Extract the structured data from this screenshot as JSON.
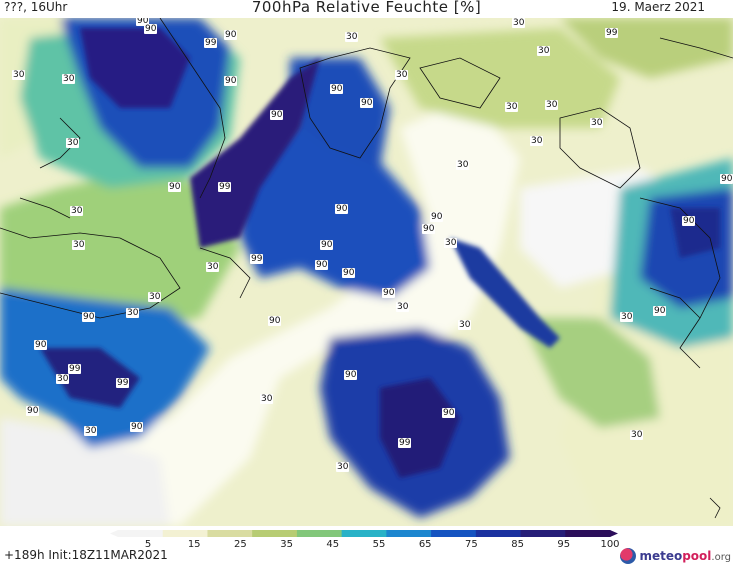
{
  "header": {
    "left": "???, 16Uhr",
    "title": "700hPa Relative Feuchte [%]",
    "right": "19. Maerz 2021"
  },
  "map_labels": {
    "items": [
      "90",
      "90",
      "99",
      "90",
      "30",
      "30",
      "30",
      "30",
      "99",
      "90",
      "30",
      "90",
      "30",
      "30",
      "30",
      "90",
      "90",
      "30",
      "30",
      "30",
      "30",
      "90",
      "30",
      "30",
      "90",
      "90",
      "99",
      "90",
      "30",
      "99",
      "90",
      "90",
      "90",
      "90",
      "30",
      "90",
      "30",
      "30",
      "90",
      "30",
      "90",
      "90",
      "30",
      "90",
      "90",
      "99",
      "99",
      "30",
      "30",
      "90",
      "90",
      "30",
      "90",
      "99",
      "90",
      "30",
      "30",
      "30"
    ]
  },
  "legend": {
    "ticks": [
      "5",
      "15",
      "25",
      "35",
      "45",
      "55",
      "65",
      "75",
      "85",
      "95",
      "100"
    ],
    "colors": [
      "#f4f4f4",
      "#f3f1d3",
      "#d9dca1",
      "#b7cc73",
      "#82c77a",
      "#29b2c7",
      "#1c86cf",
      "#1554c1",
      "#1b32a0",
      "#261e78",
      "#2b0e5a"
    ]
  },
  "footer": {
    "run": "+189h  Init:18Z11MAR2021"
  },
  "brand": {
    "name_a": "meteo",
    "name_b": "pool",
    "name_c": ".org"
  }
}
